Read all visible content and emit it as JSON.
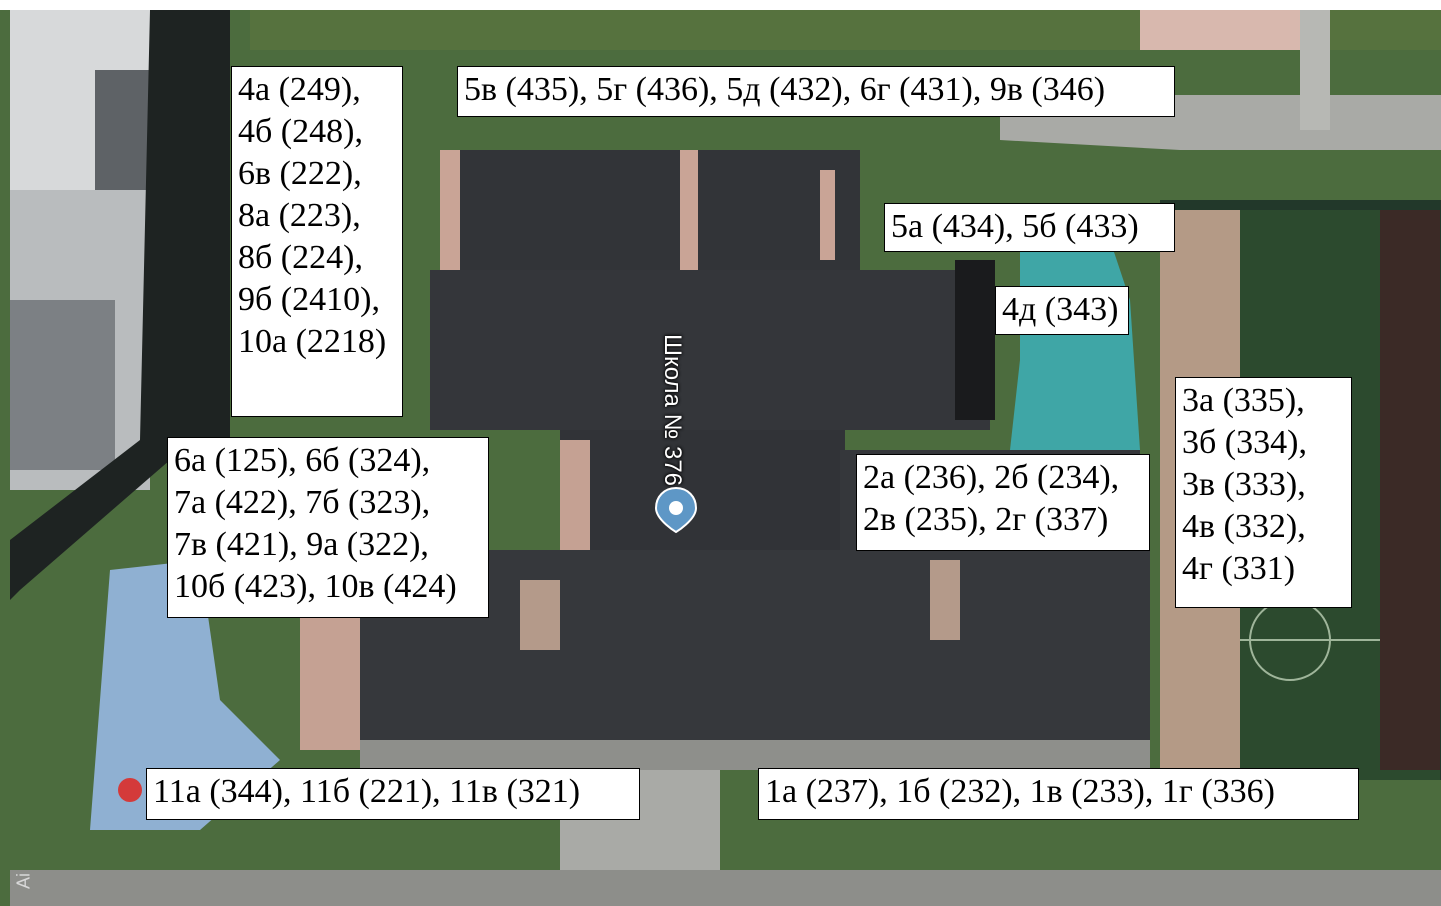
{
  "map": {
    "school_name": "Школа № 376",
    "attribution": "Ai",
    "colors": {
      "grass": "#4c6c3e",
      "roof": "#34363a",
      "playground": "#3fa6a6",
      "field": "#2c4a2e",
      "pavement": "#a9aaa6",
      "brick": "#c5a193"
    }
  },
  "labels": {
    "top_left": [
      "4а (249),",
      "4б (248),",
      "6в (222),",
      "8а (223),",
      "8б (224),",
      "9б (2410),",
      "10а (2218)"
    ],
    "top_center": [
      "5в (435), 5г (436), 5д (432), 6г (431), 9в (346)"
    ],
    "right_upper": [
      "5а (434), 5б (433)"
    ],
    "right_middle": [
      "4д (343)"
    ],
    "far_right": [
      "3а (335),",
      "3б (334),",
      "3в (333),",
      "4в (332),",
      "4г (331)"
    ],
    "left_middle": [
      "6а (125), 6б (324),",
      "7а (422), 7б (323),",
      "7в (421), 9а (322),",
      "10б (423), 10в (424)"
    ],
    "center": [
      "2а (236), 2б (234),",
      "2в (235), 2г (337)"
    ],
    "bottom_left": [
      "11а (344), 11б (221), 11в (321)"
    ],
    "bottom_right": [
      "1а (237), 1б (232), 1в (233), 1г (336)"
    ]
  }
}
